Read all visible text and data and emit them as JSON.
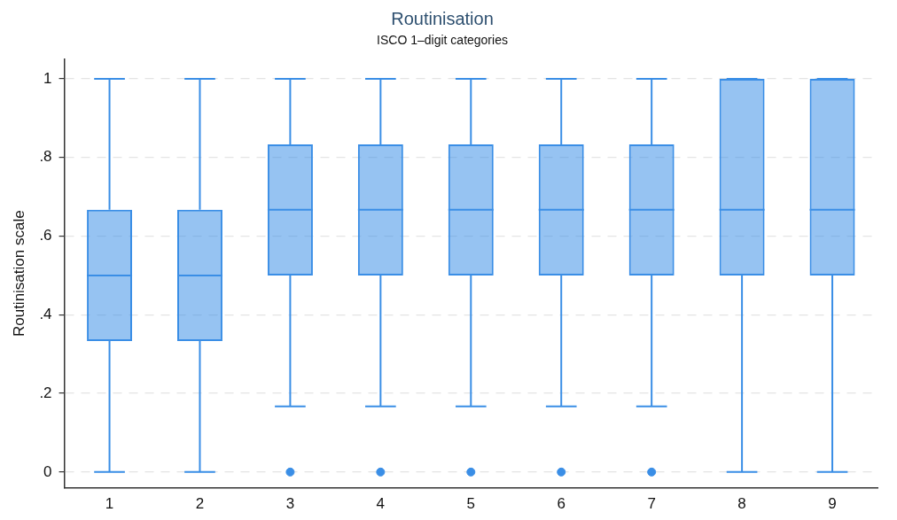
{
  "chart_data": {
    "type": "box",
    "title": "Routinisation",
    "subtitle": "ISCO 1–digit categories",
    "ylabel": "Routinisation scale",
    "categories": [
      "1",
      "2",
      "3",
      "4",
      "5",
      "6",
      "7",
      "8",
      "9"
    ],
    "series": [
      {
        "color": "#3a8ee6",
        "boxes": [
          {
            "low": 0,
            "q1": 0.333,
            "median": 0.5,
            "q3": 0.667,
            "high": 1
          },
          {
            "low": 0,
            "q1": 0.333,
            "median": 0.5,
            "q3": 0.667,
            "high": 1
          },
          {
            "low": 0.167,
            "q1": 0.5,
            "median": 0.667,
            "q3": 0.833,
            "high": 1,
            "outliers": [
              0
            ]
          },
          {
            "low": 0.167,
            "q1": 0.5,
            "median": 0.667,
            "q3": 0.833,
            "high": 1,
            "outliers": [
              0
            ]
          },
          {
            "low": 0.167,
            "q1": 0.5,
            "median": 0.667,
            "q3": 0.833,
            "high": 1,
            "outliers": [
              0
            ]
          },
          {
            "low": 0.167,
            "q1": 0.5,
            "median": 0.667,
            "q3": 0.833,
            "high": 1,
            "outliers": [
              0
            ]
          },
          {
            "low": 0.167,
            "q1": 0.5,
            "median": 0.667,
            "q3": 0.833,
            "high": 1,
            "outliers": [
              0
            ]
          },
          {
            "low": 0,
            "q1": 0.5,
            "median": 0.667,
            "q3": 1,
            "high": 1
          },
          {
            "low": 0,
            "q1": 0.5,
            "median": 0.667,
            "q3": 1,
            "high": 1
          }
        ]
      }
    ],
    "ylim": [
      -0.04,
      1.05
    ],
    "yticks": [
      0,
      {
        "value": 0.2,
        "label": ".2"
      },
      {
        "value": 0.4,
        "label": ".4"
      },
      {
        "value": 0.6,
        "label": ".6"
      },
      {
        "value": 0.8,
        "label": ".8"
      },
      1
    ],
    "grid": "y"
  }
}
